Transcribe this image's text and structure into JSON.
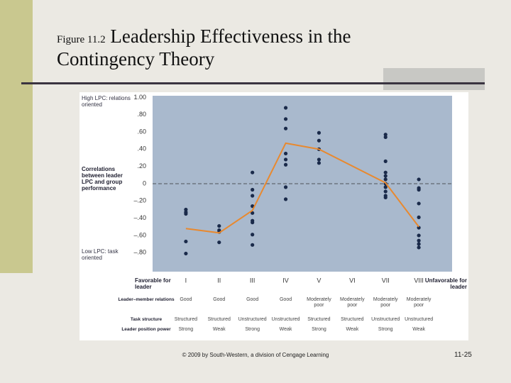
{
  "header": {
    "figure": "Figure 11.2",
    "title_line1": "Leadership Effectiveness in the",
    "title_line2": "Contingency Theory"
  },
  "chart_data": {
    "type": "line",
    "y_label_high": "High LPC: relations oriented",
    "y_label": "Correlations between leader LPC and group performance",
    "y_label_low": "Low LPC: task oriented",
    "favorable": "Favorable for leader",
    "unfavorable": "Unfavorable for leader",
    "xlim": [
      0,
      9
    ],
    "xticks": [
      {
        "value": 1,
        "label": "I"
      },
      {
        "value": 2,
        "label": "II"
      },
      {
        "value": 3,
        "label": "III"
      },
      {
        "value": 4,
        "label": "IV"
      },
      {
        "value": 5,
        "label": "V"
      },
      {
        "value": 6,
        "label": "VI"
      },
      {
        "value": 7,
        "label": "VII"
      },
      {
        "value": 8,
        "label": "VIII"
      }
    ],
    "ylim": [
      -1.02,
      1.02
    ],
    "yticks": [
      {
        "value": 1,
        "label": "1.00"
      },
      {
        "value": 0.8,
        "label": ".80"
      },
      {
        "value": 0.6,
        "label": ".60"
      },
      {
        "value": 0.4,
        "label": ".40"
      },
      {
        "value": 0.2,
        "label": ".20"
      },
      0,
      {
        "value": -0.2,
        "label": "–.20"
      },
      {
        "value": -0.4,
        "label": "–.40"
      },
      {
        "value": -0.6,
        "label": "–.60"
      },
      {
        "value": -0.8,
        "label": "–.80"
      }
    ],
    "series": [
      {
        "color": "#e8892f",
        "x": [
          1,
          2,
          3,
          4,
          5,
          7,
          8
        ],
        "values": [
          -0.52,
          -0.57,
          -0.31,
          0.47,
          0.4,
          0.01,
          -0.5
        ]
      }
    ],
    "point_color": "#1a2a4a",
    "points": [
      [
        -0.3,
        -0.33,
        -0.35,
        -0.67,
        -0.81
      ],
      [
        -0.49,
        -0.54,
        -0.56,
        -0.68
      ],
      [
        0.13,
        -0.07,
        -0.14,
        -0.26,
        -0.34,
        -0.43,
        -0.45,
        -0.59,
        -0.71
      ],
      [
        0.88,
        0.75,
        0.64,
        0.35,
        0.28,
        0.22,
        -0.04,
        -0.18
      ],
      [
        0.59,
        0.5,
        0.4,
        0.28,
        0.24
      ],
      [],
      [
        0.57,
        0.54,
        0.26,
        0.13,
        0.09,
        0.05,
        0,
        -0.04,
        -0.09,
        -0.14,
        -0.16
      ],
      [
        0.05,
        -0.05,
        -0.07,
        -0.23,
        -0.39,
        -0.51,
        -0.6,
        -0.66,
        -0.7,
        -0.74
      ]
    ],
    "rows": [
      {
        "label": "Leader–member relations",
        "cells": [
          "Good",
          "Good",
          "Good",
          "Good",
          "Moderately poor",
          "Moderately poor",
          "Moderately poor",
          "Moderately poor"
        ]
      },
      {
        "label": "Task structure",
        "cells": [
          "Structured",
          "Structured",
          "Unstructured",
          "Unstructured",
          "Structured",
          "Structured",
          "Unstructured",
          "Unstructured"
        ]
      },
      {
        "label": "Leader position power",
        "cells": [
          "Strong",
          "Weak",
          "Strong",
          "Weak",
          "Strong",
          "Weak",
          "Strong",
          "Weak"
        ]
      }
    ]
  },
  "footer": {
    "credit": "© 2009 by South-Western, a division of Cengage Learning",
    "page": "11-25"
  }
}
